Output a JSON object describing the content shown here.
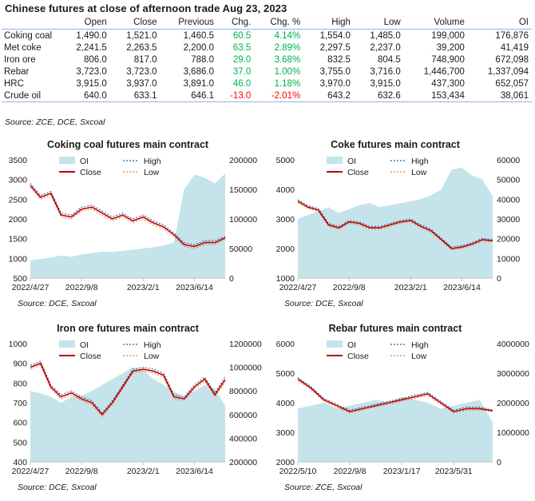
{
  "table": {
    "title": "Chinese futures at close of afternoon trade Aug 23, 2023",
    "headers": [
      "",
      "Open",
      "Close",
      "Previous",
      "Chg.",
      "Chg. %",
      "High",
      "Low",
      "Volume",
      "OI"
    ],
    "rows": [
      {
        "name": "Coking coal",
        "open": "1,490.0",
        "close": "1,521.0",
        "previous": "1,460.5",
        "chg": "60.5",
        "chg_pct": "4.14%",
        "high": "1,554.0",
        "low": "1,485.0",
        "volume": "199,000",
        "oi": "176,876",
        "dir": "pos"
      },
      {
        "name": "Met coke",
        "open": "2,241.5",
        "close": "2,263.5",
        "previous": "2,200.0",
        "chg": "63.5",
        "chg_pct": "2.89%",
        "high": "2,297.5",
        "low": "2,237.0",
        "volume": "39,200",
        "oi": "41,419",
        "dir": "pos"
      },
      {
        "name": "Iron ore",
        "open": "806.0",
        "close": "817.0",
        "previous": "788.0",
        "chg": "29.0",
        "chg_pct": "3.68%",
        "high": "832.5",
        "low": "804.5",
        "volume": "748,900",
        "oi": "672,098",
        "dir": "pos"
      },
      {
        "name": "Rebar",
        "open": "3,723.0",
        "close": "3,723.0",
        "previous": "3,686.0",
        "chg": "37.0",
        "chg_pct": "1.00%",
        "high": "3,755.0",
        "low": "3,716.0",
        "volume": "1,446,700",
        "oi": "1,337,094",
        "dir": "pos"
      },
      {
        "name": "HRC",
        "open": "3,915.0",
        "close": "3,937.0",
        "previous": "3,891.0",
        "chg": "46.0",
        "chg_pct": "1.18%",
        "high": "3,970.0",
        "low": "3,915.0",
        "volume": "437,300",
        "oi": "652,057",
        "dir": "pos"
      },
      {
        "name": "Crude oil",
        "open": "640.0",
        "close": "633.1",
        "previous": "646.1",
        "chg": "-13.0",
        "chg_pct": "-2.01%",
        "high": "643.2",
        "low": "632.6",
        "volume": "153,434",
        "oi": "38,061",
        "dir": "neg"
      }
    ],
    "source": "Source: ZCE, DCE, Sxcoal",
    "colors": {
      "positive": "#00b050",
      "negative": "#ff0000"
    }
  },
  "chart_data": [
    {
      "type": "line",
      "title": "Coking coal futures main contract",
      "source": "Source: DCE, Sxcoal",
      "x_ticks": [
        "2022/4/27",
        "2022/9/8",
        "2023/2/1",
        "2023/6/14"
      ],
      "x": [
        "2022/4/27",
        "2022/5/31",
        "2022/6/30",
        "2022/7/29",
        "2022/8/31",
        "2022/9/8",
        "2022/9/30",
        "2022/10/31",
        "2022/11/30",
        "2022/12/30",
        "2023/1/31",
        "2023/2/1",
        "2023/2/28",
        "2023/3/31",
        "2023/4/28",
        "2023/5/31",
        "2023/6/14",
        "2023/6/30",
        "2023/7/31",
        "2023/8/23"
      ],
      "ylim": [
        500,
        3500
      ],
      "y_ticks": [
        500,
        1000,
        1500,
        2000,
        2500,
        3000,
        3500
      ],
      "y2lim": [
        0,
        200000
      ],
      "y2_ticks": [
        0,
        50000,
        100000,
        150000,
        200000
      ],
      "series": [
        {
          "name": "OI",
          "type": "area",
          "axis": "right",
          "color": "#c5e3ea",
          "values": [
            30000,
            32000,
            35000,
            38000,
            36000,
            40000,
            42000,
            45000,
            44000,
            46000,
            48000,
            50000,
            52000,
            55000,
            60000,
            150000,
            175000,
            170000,
            160000,
            176876
          ]
        },
        {
          "name": "Close",
          "type": "line",
          "axis": "left",
          "color": "#c00000",
          "values": [
            2850,
            2550,
            2650,
            2100,
            2050,
            2250,
            2300,
            2150,
            2000,
            2100,
            1950,
            2050,
            1900,
            1800,
            1600,
            1350,
            1300,
            1400,
            1400,
            1521
          ]
        },
        {
          "name": "High",
          "type": "line",
          "axis": "left",
          "color": "#1f5fa0",
          "dash": "2,2",
          "values": [
            2900,
            2600,
            2700,
            2150,
            2100,
            2300,
            2350,
            2200,
            2050,
            2150,
            2000,
            2100,
            1950,
            1850,
            1650,
            1400,
            1350,
            1450,
            1450,
            1554
          ]
        },
        {
          "name": "Low",
          "type": "line",
          "axis": "left",
          "color": "#ed7d31",
          "dash": "2,2",
          "values": [
            2800,
            2500,
            2600,
            2050,
            2000,
            2200,
            2250,
            2100,
            1950,
            2050,
            1900,
            2000,
            1850,
            1750,
            1550,
            1300,
            1250,
            1350,
            1350,
            1485
          ]
        }
      ]
    },
    {
      "type": "line",
      "title": "Coke futures main contract",
      "source": "Source: DCE, Sxcoal",
      "x_ticks": [
        "2022/4/27",
        "2022/9/8",
        "2023/2/1",
        "2023/6/14"
      ],
      "x": [
        "2022/4/27",
        "2022/5/31",
        "2022/6/30",
        "2022/7/29",
        "2022/8/31",
        "2022/9/8",
        "2022/9/30",
        "2022/10/31",
        "2022/11/30",
        "2022/12/30",
        "2023/1/31",
        "2023/2/1",
        "2023/2/28",
        "2023/3/31",
        "2023/4/28",
        "2023/5/31",
        "2023/6/14",
        "2023/6/30",
        "2023/7/31",
        "2023/8/23"
      ],
      "ylim": [
        1000,
        5000
      ],
      "y_ticks": [
        1000,
        2000,
        3000,
        4000,
        5000
      ],
      "y2lim": [
        0,
        60000
      ],
      "y2_ticks": [
        0,
        10000,
        20000,
        30000,
        40000,
        50000,
        60000
      ],
      "series": [
        {
          "name": "OI",
          "type": "area",
          "axis": "right",
          "color": "#c5e3ea",
          "values": [
            30000,
            32000,
            34000,
            36000,
            33000,
            35000,
            37000,
            38000,
            36000,
            37000,
            38000,
            39000,
            40000,
            42000,
            45000,
            55000,
            56000,
            52000,
            50000,
            41419
          ]
        },
        {
          "name": "Close",
          "type": "line",
          "axis": "left",
          "color": "#c00000",
          "values": [
            3600,
            3400,
            3300,
            2800,
            2700,
            2900,
            2850,
            2700,
            2700,
            2800,
            2900,
            2950,
            2750,
            2600,
            2300,
            2000,
            2050,
            2150,
            2300,
            2263.5
          ]
        },
        {
          "name": "High",
          "type": "line",
          "axis": "left",
          "color": "#1f5fa0",
          "dash": "2,2",
          "values": [
            3650,
            3450,
            3350,
            2850,
            2750,
            2950,
            2900,
            2750,
            2750,
            2850,
            2950,
            3000,
            2800,
            2650,
            2350,
            2050,
            2100,
            2200,
            2350,
            2297.5
          ]
        },
        {
          "name": "Low",
          "type": "line",
          "axis": "left",
          "color": "#ed7d31",
          "dash": "2,2",
          "values": [
            3550,
            3350,
            3250,
            2750,
            2650,
            2850,
            2800,
            2650,
            2650,
            2750,
            2850,
            2900,
            2700,
            2550,
            2250,
            1950,
            2000,
            2100,
            2250,
            2237
          ]
        }
      ]
    },
    {
      "type": "line",
      "title": "Iron ore futures main contract",
      "source": "Source: DCE, Sxcoal",
      "x_ticks": [
        "2022/4/27",
        "2022/9/8",
        "2023/2/1",
        "2023/6/14"
      ],
      "x": [
        "2022/4/27",
        "2022/5/31",
        "2022/6/30",
        "2022/7/29",
        "2022/8/31",
        "2022/9/8",
        "2022/9/30",
        "2022/10/31",
        "2022/11/30",
        "2022/12/30",
        "2023/1/31",
        "2023/2/1",
        "2023/2/28",
        "2023/3/31",
        "2023/4/28",
        "2023/5/31",
        "2023/6/14",
        "2023/6/30",
        "2023/7/31",
        "2023/8/23"
      ],
      "ylim": [
        400,
        1000
      ],
      "y_ticks": [
        400,
        500,
        600,
        700,
        800,
        900,
        1000
      ],
      "y2lim": [
        200000,
        1200000
      ],
      "y2_ticks": [
        200000,
        400000,
        600000,
        800000,
        1000000,
        1200000
      ],
      "series": [
        {
          "name": "OI",
          "type": "area",
          "axis": "right",
          "color": "#c5e3ea",
          "values": [
            800000,
            780000,
            750000,
            700000,
            750000,
            760000,
            800000,
            850000,
            900000,
            950000,
            1000000,
            980000,
            900000,
            850000,
            800000,
            750000,
            800000,
            850000,
            820000,
            672098
          ]
        },
        {
          "name": "Close",
          "type": "line",
          "axis": "left",
          "color": "#c00000",
          "values": [
            880,
            900,
            780,
            730,
            750,
            720,
            700,
            640,
            700,
            780,
            860,
            870,
            860,
            840,
            730,
            720,
            780,
            820,
            740,
            817
          ]
        },
        {
          "name": "High",
          "type": "line",
          "axis": "left",
          "color": "#1f5fa0",
          "dash": "2,2",
          "values": [
            890,
            910,
            790,
            740,
            760,
            730,
            710,
            650,
            710,
            790,
            870,
            880,
            870,
            850,
            740,
            730,
            790,
            830,
            750,
            832.5
          ]
        },
        {
          "name": "Low",
          "type": "line",
          "axis": "left",
          "color": "#ed7d31",
          "dash": "2,2",
          "values": [
            870,
            890,
            770,
            720,
            740,
            710,
            690,
            630,
            690,
            770,
            850,
            860,
            850,
            830,
            720,
            710,
            770,
            810,
            730,
            804.5
          ]
        }
      ]
    },
    {
      "type": "line",
      "title": "Rebar futures main contract",
      "source": "Source: ZCE, Sxcoal",
      "x_ticks": [
        "2022/5/10",
        "2022/9/8",
        "2023/1/17",
        "2023/5/31"
      ],
      "x": [
        "2022/5/10",
        "2022/6/10",
        "2022/7/10",
        "2022/8/10",
        "2022/9/8",
        "2022/10/10",
        "2022/11/10",
        "2022/12/10",
        "2023/1/17",
        "2023/2/17",
        "2023/3/17",
        "2023/4/17",
        "2023/5/31",
        "2023/6/30",
        "2023/7/31",
        "2023/8/23"
      ],
      "ylim": [
        2000,
        6000
      ],
      "y_ticks": [
        2000,
        3000,
        4000,
        5000,
        6000
      ],
      "y2lim": [
        0,
        4000000
      ],
      "y2_ticks": [
        0,
        1000000,
        2000000,
        3000000,
        4000000
      ],
      "series": [
        {
          "name": "OI",
          "type": "area",
          "axis": "right",
          "color": "#c5e3ea",
          "values": [
            1800000,
            1900000,
            2000000,
            1800000,
            1900000,
            2000000,
            2100000,
            2000000,
            2200000,
            2100000,
            2000000,
            1800000,
            1900000,
            2000000,
            2100000,
            1337094
          ]
        },
        {
          "name": "Close",
          "type": "line",
          "axis": "left",
          "color": "#c00000",
          "values": [
            4800,
            4500,
            4100,
            3900,
            3700,
            3800,
            3900,
            4000,
            4100,
            4200,
            4300,
            4000,
            3700,
            3800,
            3800,
            3723
          ]
        },
        {
          "name": "High",
          "type": "line",
          "axis": "left",
          "color": "#1f5fa0",
          "dash": "2,2",
          "values": [
            4850,
            4550,
            4150,
            3950,
            3750,
            3850,
            3950,
            4050,
            4150,
            4250,
            4350,
            4050,
            3750,
            3850,
            3850,
            3755
          ]
        },
        {
          "name": "Low",
          "type": "line",
          "axis": "left",
          "color": "#ed7d31",
          "dash": "2,2",
          "values": [
            4750,
            4450,
            4050,
            3850,
            3650,
            3750,
            3850,
            3950,
            4050,
            4150,
            4250,
            3950,
            3650,
            3750,
            3750,
            3716
          ]
        }
      ]
    }
  ]
}
